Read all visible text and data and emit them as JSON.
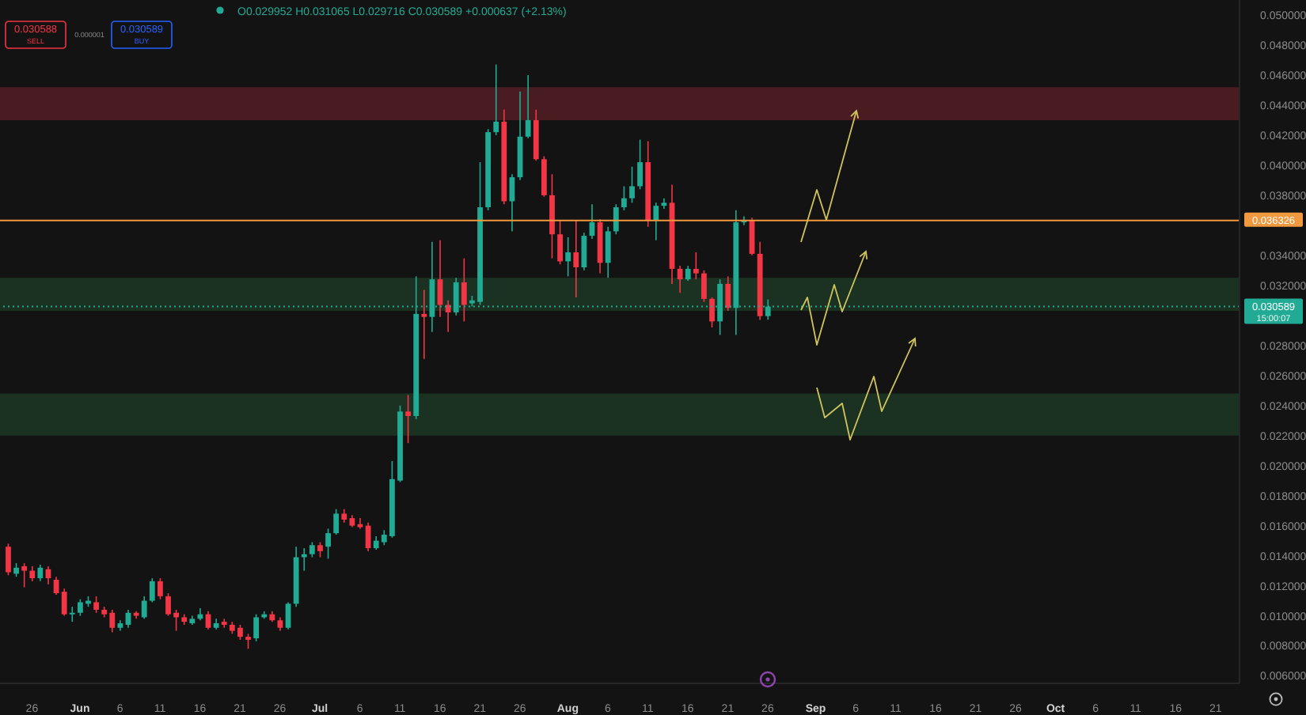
{
  "chart_data": {
    "type": "candlestick",
    "x": [
      "--05-23",
      "--05-24",
      "--05-25",
      "--05-26",
      "--05-27",
      "--05-28",
      "--05-29",
      "--05-30",
      "--05-31",
      "--06-01",
      "--06-02",
      "--06-03",
      "--06-04",
      "--06-05",
      "--06-06",
      "--06-07",
      "--06-08",
      "--06-09",
      "--06-10",
      "--06-11",
      "--06-12",
      "--06-13",
      "--06-14",
      "--06-15",
      "--06-16",
      "--06-17",
      "--06-18",
      "--06-19",
      "--06-20",
      "--06-21",
      "--06-22",
      "--06-23",
      "--06-24",
      "--06-25",
      "--06-26",
      "--06-27",
      "--06-28",
      "--06-29",
      "--06-30",
      "--07-01",
      "--07-02",
      "--07-03",
      "--07-04",
      "--07-05",
      "--07-06",
      "--07-07",
      "--07-08",
      "--07-09",
      "--07-10",
      "--07-11",
      "--07-12",
      "--07-13",
      "--07-14",
      "--07-15",
      "--07-16",
      "--07-17",
      "--07-18",
      "--07-19",
      "--07-20",
      "--07-21",
      "--07-22",
      "--07-23",
      "--07-24",
      "--07-25",
      "--07-26",
      "--07-27",
      "--07-28",
      "--07-29",
      "--07-30",
      "--07-31",
      "--08-01",
      "--08-02",
      "--08-03",
      "--08-04",
      "--08-05",
      "--08-06",
      "--08-07",
      "--08-08",
      "--08-09",
      "--08-10",
      "--08-11",
      "--08-12",
      "--08-13",
      "--08-14",
      "--08-15",
      "--08-16",
      "--08-17",
      "--08-18",
      "--08-19",
      "--08-20",
      "--08-21",
      "--08-22",
      "--08-23",
      "--08-24",
      "--08-25",
      "--08-26"
    ],
    "ohlc": [
      [
        0.0146,
        0.0148,
        0.0127,
        0.0129
      ],
      [
        0.0128,
        0.0135,
        0.0126,
        0.0132
      ],
      [
        0.0133,
        0.0135,
        0.0119,
        0.013
      ],
      [
        0.013,
        0.0133,
        0.0123,
        0.0125
      ],
      [
        0.0125,
        0.0134,
        0.0123,
        0.0132
      ],
      [
        0.0131,
        0.0133,
        0.0121,
        0.0125
      ],
      [
        0.0124,
        0.0126,
        0.0114,
        0.0115
      ],
      [
        0.0116,
        0.0118,
        0.01,
        0.0101
      ],
      [
        0.0101,
        0.0106,
        0.0096,
        0.0102
      ],
      [
        0.0102,
        0.0111,
        0.01,
        0.0109
      ],
      [
        0.0108,
        0.0113,
        0.0106,
        0.011
      ],
      [
        0.0109,
        0.0113,
        0.0102,
        0.0104
      ],
      [
        0.0104,
        0.0106,
        0.0099,
        0.0101
      ],
      [
        0.0102,
        0.0104,
        0.0089,
        0.0092
      ],
      [
        0.0092,
        0.0097,
        0.009,
        0.0095
      ],
      [
        0.0094,
        0.0104,
        0.0092,
        0.0102
      ],
      [
        0.0102,
        0.0103,
        0.0098,
        0.01
      ],
      [
        0.0099,
        0.0113,
        0.0098,
        0.011
      ],
      [
        0.011,
        0.0125,
        0.0109,
        0.0123
      ],
      [
        0.0123,
        0.0125,
        0.0111,
        0.0113
      ],
      [
        0.0113,
        0.0115,
        0.01,
        0.0101
      ],
      [
        0.0102,
        0.0104,
        0.009,
        0.0099
      ],
      [
        0.0099,
        0.0101,
        0.0094,
        0.0096
      ],
      [
        0.0095,
        0.01,
        0.0094,
        0.0098
      ],
      [
        0.0098,
        0.0105,
        0.0097,
        0.0101
      ],
      [
        0.0101,
        0.0103,
        0.0091,
        0.0092
      ],
      [
        0.0092,
        0.0098,
        0.0091,
        0.0095
      ],
      [
        0.0096,
        0.0098,
        0.0092,
        0.0094
      ],
      [
        0.0094,
        0.0096,
        0.0088,
        0.009
      ],
      [
        0.0092,
        0.0094,
        0.0084,
        0.0086
      ],
      [
        0.0086,
        0.0088,
        0.0078,
        0.0084
      ],
      [
        0.0085,
        0.0101,
        0.0083,
        0.0099
      ],
      [
        0.0099,
        0.0103,
        0.0098,
        0.0101
      ],
      [
        0.0101,
        0.0103,
        0.0096,
        0.0097
      ],
      [
        0.0097,
        0.0099,
        0.009,
        0.0092
      ],
      [
        0.0092,
        0.0109,
        0.0091,
        0.0108
      ],
      [
        0.0108,
        0.0146,
        0.0106,
        0.0139
      ],
      [
        0.0139,
        0.0145,
        0.013,
        0.0141
      ],
      [
        0.0141,
        0.0149,
        0.0139,
        0.0147
      ],
      [
        0.0147,
        0.0149,
        0.0139,
        0.0143
      ],
      [
        0.0146,
        0.0158,
        0.0138,
        0.0155
      ],
      [
        0.0155,
        0.0171,
        0.0154,
        0.0168
      ],
      [
        0.0168,
        0.0171,
        0.0162,
        0.0164
      ],
      [
        0.0165,
        0.0167,
        0.0159,
        0.016
      ],
      [
        0.0161,
        0.0165,
        0.0158,
        0.0159
      ],
      [
        0.016,
        0.0162,
        0.0143,
        0.0145
      ],
      [
        0.0145,
        0.0153,
        0.0144,
        0.015
      ],
      [
        0.0149,
        0.0157,
        0.0147,
        0.0154
      ],
      [
        0.0153,
        0.0203,
        0.0152,
        0.0191
      ],
      [
        0.019,
        0.024,
        0.0189,
        0.0236
      ],
      [
        0.0236,
        0.0247,
        0.0215,
        0.0233
      ],
      [
        0.0233,
        0.0326,
        0.0231,
        0.0301
      ],
      [
        0.0301,
        0.0317,
        0.0271,
        0.0299
      ],
      [
        0.0299,
        0.0349,
        0.0289,
        0.0324
      ],
      [
        0.0324,
        0.035,
        0.0299,
        0.0307
      ],
      [
        0.0307,
        0.031,
        0.0289,
        0.0302
      ],
      [
        0.0302,
        0.0325,
        0.03,
        0.0322
      ],
      [
        0.0322,
        0.0338,
        0.0296,
        0.0307
      ],
      [
        0.0308,
        0.0313,
        0.0306,
        0.031
      ],
      [
        0.0309,
        0.0402,
        0.0307,
        0.0372
      ],
      [
        0.0372,
        0.0424,
        0.037,
        0.0422
      ],
      [
        0.0422,
        0.0467,
        0.042,
        0.0429
      ],
      [
        0.0429,
        0.0437,
        0.0374,
        0.0376
      ],
      [
        0.0376,
        0.0394,
        0.0356,
        0.0392
      ],
      [
        0.0392,
        0.0449,
        0.039,
        0.0419
      ],
      [
        0.0419,
        0.046,
        0.0418,
        0.043
      ],
      [
        0.043,
        0.0437,
        0.0403,
        0.0404
      ],
      [
        0.0404,
        0.0406,
        0.0379,
        0.038
      ],
      [
        0.038,
        0.0394,
        0.0338,
        0.0354
      ],
      [
        0.0354,
        0.0363,
        0.0334,
        0.0336
      ],
      [
        0.0336,
        0.0352,
        0.0326,
        0.0342
      ],
      [
        0.0342,
        0.0363,
        0.0312,
        0.0332
      ],
      [
        0.0332,
        0.0355,
        0.033,
        0.0353
      ],
      [
        0.0353,
        0.0374,
        0.0351,
        0.0362
      ],
      [
        0.0362,
        0.0364,
        0.0328,
        0.0335
      ],
      [
        0.0335,
        0.0359,
        0.0325,
        0.0356
      ],
      [
        0.0356,
        0.0374,
        0.0354,
        0.0372
      ],
      [
        0.0372,
        0.0386,
        0.037,
        0.0378
      ],
      [
        0.0378,
        0.0399,
        0.0375,
        0.0386
      ],
      [
        0.0386,
        0.0417,
        0.0384,
        0.0402
      ],
      [
        0.0402,
        0.0416,
        0.0359,
        0.0363
      ],
      [
        0.0363,
        0.0375,
        0.035,
        0.0373
      ],
      [
        0.0373,
        0.0378,
        0.0371,
        0.0375
      ],
      [
        0.0375,
        0.0387,
        0.0321,
        0.0331
      ],
      [
        0.0331,
        0.0333,
        0.0315,
        0.0324
      ],
      [
        0.0324,
        0.0333,
        0.0323,
        0.0331
      ],
      [
        0.0331,
        0.0342,
        0.0324,
        0.0328
      ],
      [
        0.0328,
        0.033,
        0.0309,
        0.0311
      ],
      [
        0.0311,
        0.0312,
        0.0292,
        0.0296
      ],
      [
        0.0296,
        0.0324,
        0.0287,
        0.0321
      ],
      [
        0.0321,
        0.0326,
        0.0303,
        0.0305
      ],
      [
        0.0305,
        0.037,
        0.0287,
        0.0362
      ],
      [
        0.0362,
        0.0366,
        0.036,
        0.0363
      ],
      [
        0.0363,
        0.0365,
        0.034,
        0.0341
      ],
      [
        0.0341,
        0.0349,
        0.0297,
        0.02995
      ],
      [
        0.029952,
        0.031065,
        0.029716,
        0.030589
      ]
    ],
    "colors": [
      "#f23645",
      "#22ab94",
      "#f23645",
      "#f23645",
      "#22ab94",
      "#f23645",
      "#f23645",
      "#f23645",
      "#22ab94",
      "#22ab94",
      "#22ab94",
      "#f23645",
      "#f23645",
      "#f23645",
      "#22ab94",
      "#22ab94",
      "#f23645",
      "#22ab94",
      "#22ab94",
      "#f23645",
      "#f23645",
      "#f23645",
      "#f23645",
      "#22ab94",
      "#22ab94",
      "#f23645",
      "#22ab94",
      "#f23645",
      "#f23645",
      "#f23645",
      "#f23645",
      "#22ab94",
      "#22ab94",
      "#f23645",
      "#f23645",
      "#22ab94",
      "#22ab94",
      "#22ab94",
      "#22ab94",
      "#f23645",
      "#22ab94",
      "#22ab94",
      "#f23645",
      "#f23645",
      "#f23645",
      "#f23645",
      "#22ab94",
      "#22ab94",
      "#22ab94",
      "#22ab94",
      "#f23645",
      "#22ab94",
      "#f23645",
      "#22ab94",
      "#f23645",
      "#f23645",
      "#22ab94",
      "#f23645",
      "#22ab94",
      "#22ab94",
      "#22ab94",
      "#22ab94",
      "#f23645",
      "#22ab94",
      "#22ab94",
      "#22ab94",
      "#f23645",
      "#f23645",
      "#f23645",
      "#f23645",
      "#22ab94",
      "#f23645",
      "#22ab94",
      "#22ab94",
      "#f23645",
      "#22ab94",
      "#22ab94",
      "#22ab94",
      "#22ab94",
      "#22ab94",
      "#f23645",
      "#22ab94",
      "#22ab94",
      "#f23645",
      "#f23645",
      "#22ab94",
      "#f23645",
      "#f23645",
      "#f23645",
      "#22ab94",
      "#f23645",
      "#22ab94",
      "#22ab94",
      "#f23645",
      "#f23645",
      "#22ab94"
    ],
    "xlim": [
      "--05-22",
      "--10-24"
    ],
    "xticks": [
      {
        "value": "--05-26",
        "label": "26"
      },
      {
        "value": "--06-01",
        "label": "Jun"
      },
      {
        "value": "--06-06",
        "label": "6"
      },
      {
        "value": "--06-11",
        "label": "11"
      },
      {
        "value": "--06-16",
        "label": "16"
      },
      {
        "value": "--06-21",
        "label": "21"
      },
      {
        "value": "--06-26",
        "label": "26"
      },
      {
        "value": "--07-01",
        "label": "Jul"
      },
      {
        "value": "--07-06",
        "label": "6"
      },
      {
        "value": "--07-11",
        "label": "11"
      },
      {
        "value": "--07-16",
        "label": "16"
      },
      {
        "value": "--07-21",
        "label": "21"
      },
      {
        "value": "--07-26",
        "label": "26"
      },
      {
        "value": "--08-01",
        "label": "Aug"
      },
      {
        "value": "--08-06",
        "label": "6"
      },
      {
        "value": "--08-11",
        "label": "11"
      },
      {
        "value": "--08-16",
        "label": "16"
      },
      {
        "value": "--08-21",
        "label": "21"
      },
      {
        "value": "--08-26",
        "label": "26"
      },
      {
        "value": "--09-01",
        "label": "Sep"
      },
      {
        "value": "--09-06",
        "label": "6"
      },
      {
        "value": "--09-11",
        "label": "11"
      },
      {
        "value": "--09-16",
        "label": "16"
      },
      {
        "value": "--09-21",
        "label": "21"
      },
      {
        "value": "--09-26",
        "label": "26"
      },
      {
        "value": "--10-01",
        "label": "Oct"
      },
      {
        "value": "--10-06",
        "label": "6"
      },
      {
        "value": "--10-11",
        "label": "11"
      },
      {
        "value": "--10-16",
        "label": "16"
      },
      {
        "value": "--10-21",
        "label": "21"
      }
    ],
    "ylim": [
      0.0055,
      0.051
    ],
    "yticks": [
      {
        "value": 0.05,
        "label": "0.050000"
      },
      {
        "value": 0.048,
        "label": "0.048000"
      },
      {
        "value": 0.046,
        "label": "0.046000"
      },
      {
        "value": 0.044,
        "label": "0.044000"
      },
      {
        "value": 0.042,
        "label": "0.042000"
      },
      {
        "value": 0.04,
        "label": "0.040000"
      },
      {
        "value": 0.038,
        "label": "0.038000"
      },
      {
        "value": 0.034,
        "label": "0.034000"
      },
      {
        "value": 0.032,
        "label": "0.032000"
      },
      {
        "value": 0.028,
        "label": "0.028000"
      },
      {
        "value": 0.026,
        "label": "0.026000"
      },
      {
        "value": 0.024,
        "label": "0.024000"
      },
      {
        "value": 0.022,
        "label": "0.022000"
      },
      {
        "value": 0.02,
        "label": "0.020000"
      },
      {
        "value": 0.018,
        "label": "0.018000"
      },
      {
        "value": 0.016,
        "label": "0.016000"
      },
      {
        "value": 0.014,
        "label": "0.014000"
      },
      {
        "value": 0.012,
        "label": "0.012000"
      },
      {
        "value": 0.01,
        "label": "0.010000"
      },
      {
        "value": 0.008,
        "label": "0.008000"
      },
      {
        "value": 0.006,
        "label": "0.006000"
      }
    ],
    "bands": [
      {
        "axis": "y",
        "from": 0.043,
        "to": 0.0452,
        "color": "#4f1e24"
      },
      {
        "axis": "y",
        "from": 0.0303,
        "to": 0.0325,
        "color": "#1d3524"
      },
      {
        "axis": "y",
        "from": 0.022,
        "to": 0.0248,
        "color": "#1d3524"
      }
    ],
    "ref_lines": [
      {
        "axis": "y",
        "value": 0.036326,
        "label": "0.036326",
        "color": "#f0993e",
        "line_style": "solid"
      },
      {
        "axis": "y",
        "value": 0.030589,
        "label": "0.030589",
        "color": "#22ab94",
        "line_style": "dotted"
      }
    ],
    "annotations": [
      "O0.029952 H0.031065 L0.029716 C0.030589 +0.000637 (+2.13%)",
      "0.030588",
      "SELL",
      "0.000001",
      "0.030589",
      "BUY",
      "15:00:07"
    ]
  }
}
